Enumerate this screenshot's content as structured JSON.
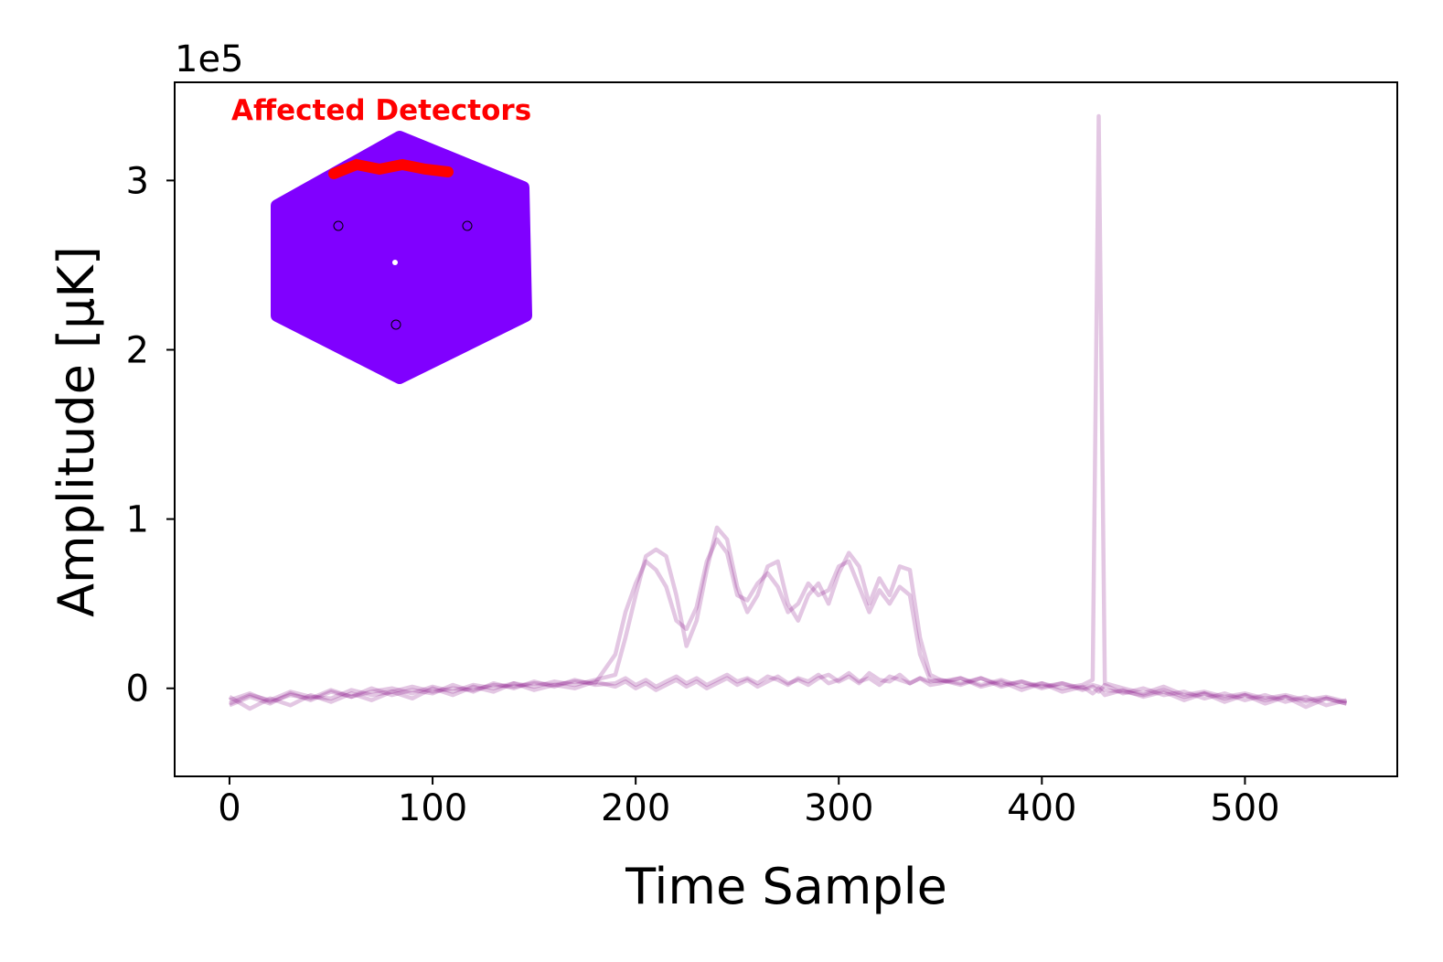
{
  "chart_data": {
    "type": "line",
    "offset_label": "1e5",
    "x_label": "Time Sample",
    "y_label": "Amplitude [μK]",
    "inset_title": "Affected Detectors",
    "xlim": [
      -27,
      575
    ],
    "xticks": [
      0,
      100,
      200,
      300,
      400,
      500
    ],
    "ylim": [
      -0.52,
      3.58
    ],
    "yticks": [
      0,
      1,
      2,
      3
    ],
    "grid": false,
    "x": [
      0,
      10,
      20,
      30,
      40,
      50,
      60,
      70,
      80,
      90,
      100,
      110,
      120,
      130,
      140,
      150,
      160,
      170,
      180,
      190,
      195,
      200,
      205,
      210,
      215,
      220,
      225,
      230,
      235,
      240,
      245,
      250,
      255,
      260,
      265,
      270,
      275,
      280,
      285,
      290,
      295,
      300,
      305,
      310,
      315,
      320,
      325,
      330,
      335,
      340,
      345,
      350,
      360,
      370,
      380,
      390,
      400,
      410,
      420,
      425,
      428,
      431,
      440,
      450,
      460,
      470,
      480,
      490,
      500,
      510,
      520,
      530,
      540,
      550
    ],
    "series": [
      {
        "color": "#800080",
        "values": [
          -0.1,
          -0.05,
          -0.09,
          -0.03,
          -0.07,
          -0.02,
          -0.05,
          0.0,
          -0.04,
          -0.01,
          -0.03,
          0.02,
          -0.02,
          0.03,
          0.0,
          0.04,
          0.01,
          0.05,
          0.02,
          0.03,
          0.06,
          0.02,
          0.05,
          0.01,
          0.04,
          0.07,
          0.03,
          0.06,
          0.02,
          0.05,
          0.08,
          0.04,
          0.06,
          0.03,
          0.07,
          0.05,
          0.02,
          0.06,
          0.04,
          0.08,
          0.03,
          0.05,
          0.09,
          0.04,
          0.06,
          0.02,
          0.07,
          0.05,
          0.03,
          0.06,
          0.04,
          0.05,
          0.02,
          0.06,
          0.01,
          0.04,
          0.0,
          0.03,
          -0.01,
          0.01,
          -0.02,
          0.02,
          -0.03,
          0.0,
          -0.04,
          -0.02,
          -0.06,
          -0.03,
          -0.07,
          -0.04,
          -0.08,
          -0.05,
          -0.1,
          -0.07
        ]
      },
      {
        "color": "#800080",
        "values": [
          -0.05,
          -0.12,
          -0.06,
          -0.1,
          -0.04,
          -0.08,
          -0.03,
          -0.07,
          -0.02,
          -0.06,
          0.0,
          -0.04,
          0.01,
          -0.02,
          0.03,
          -0.01,
          0.02,
          0.0,
          0.04,
          0.01,
          0.04,
          0.0,
          0.03,
          -0.01,
          0.02,
          0.05,
          0.01,
          0.04,
          0.0,
          0.03,
          0.06,
          0.02,
          0.05,
          0.01,
          0.04,
          0.07,
          0.03,
          0.05,
          0.02,
          0.06,
          0.08,
          0.04,
          0.07,
          0.03,
          0.09,
          0.05,
          0.04,
          0.08,
          0.03,
          0.06,
          0.02,
          0.03,
          0.06,
          0.01,
          0.04,
          -0.01,
          0.03,
          -0.02,
          0.01,
          -0.03,
          0.0,
          -0.04,
          -0.01,
          -0.05,
          -0.02,
          -0.07,
          -0.03,
          -0.08,
          -0.04,
          -0.09,
          -0.05,
          -0.11,
          -0.06,
          -0.09
        ]
      },
      {
        "color": "#800080",
        "values": [
          -0.07,
          -0.03,
          -0.08,
          -0.04,
          -0.06,
          -0.01,
          -0.05,
          -0.02,
          0.0,
          -0.03,
          0.01,
          -0.02,
          0.02,
          0.0,
          0.03,
          0.01,
          0.04,
          0.02,
          0.05,
          0.08,
          0.3,
          0.55,
          0.78,
          0.82,
          0.78,
          0.55,
          0.25,
          0.4,
          0.7,
          0.95,
          0.88,
          0.6,
          0.45,
          0.55,
          0.72,
          0.75,
          0.5,
          0.4,
          0.55,
          0.62,
          0.5,
          0.68,
          0.8,
          0.72,
          0.5,
          0.65,
          0.55,
          0.72,
          0.7,
          0.3,
          0.08,
          0.05,
          0.03,
          0.06,
          0.02,
          0.04,
          0.01,
          0.03,
          0.0,
          0.02,
          0.01,
          -0.01,
          -0.02,
          -0.04,
          -0.01,
          -0.05,
          -0.03,
          -0.06,
          -0.04,
          -0.07,
          -0.05,
          -0.08,
          -0.06,
          -0.09
        ]
      },
      {
        "color": "#800080",
        "values": [
          -0.09,
          -0.04,
          -0.07,
          -0.02,
          -0.05,
          -0.06,
          -0.01,
          -0.04,
          -0.02,
          0.01,
          -0.02,
          0.0,
          -0.01,
          0.02,
          0.01,
          0.03,
          0.02,
          0.04,
          0.03,
          0.2,
          0.45,
          0.62,
          0.75,
          0.7,
          0.6,
          0.4,
          0.35,
          0.48,
          0.75,
          0.88,
          0.8,
          0.55,
          0.52,
          0.62,
          0.68,
          0.6,
          0.45,
          0.5,
          0.62,
          0.55,
          0.58,
          0.72,
          0.75,
          0.6,
          0.45,
          0.58,
          0.5,
          0.6,
          0.55,
          0.2,
          0.05,
          0.04,
          0.06,
          0.02,
          0.05,
          0.01,
          0.03,
          0.0,
          0.02,
          0.05,
          3.38,
          0.03,
          0.0,
          -0.03,
          0.01,
          -0.04,
          -0.02,
          -0.05,
          -0.03,
          -0.06,
          -0.04,
          -0.07,
          -0.05,
          -0.08
        ]
      }
    ]
  }
}
